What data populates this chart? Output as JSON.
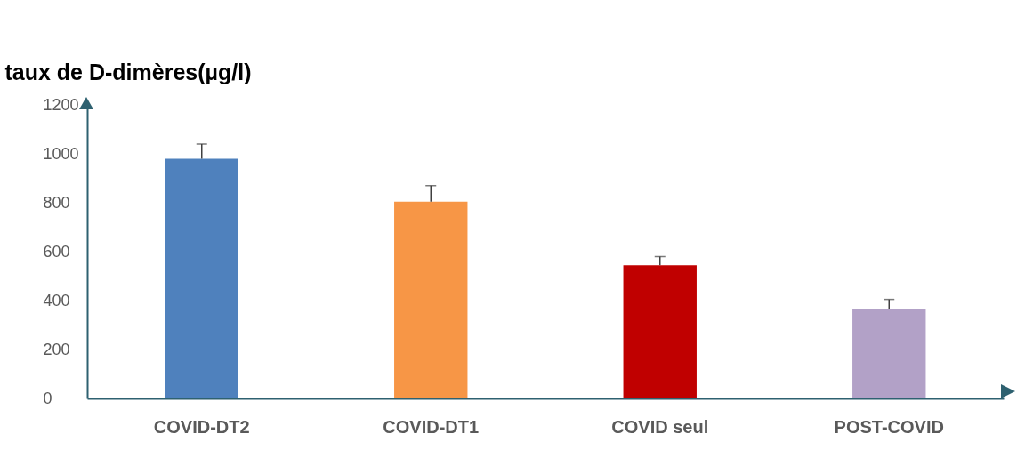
{
  "chart_data": {
    "type": "bar",
    "ylabel": "taux de D-dimères(µg/l)",
    "categories": [
      "COVID-DT2",
      "COVID-DT1",
      "COVID seul",
      "POST-COVID"
    ],
    "values": [
      980,
      805,
      545,
      365
    ],
    "colors": [
      "#4f81bd",
      "#f79646",
      "#c00000",
      "#b2a1c7"
    ],
    "errors": [
      [
        980,
        1040
      ],
      [
        805,
        870
      ],
      [
        545,
        580
      ],
      [
        365,
        405
      ]
    ],
    "ylim": [
      0,
      1200
    ],
    "yticks": [
      0,
      200,
      400,
      600,
      800,
      1000,
      1200
    ]
  }
}
